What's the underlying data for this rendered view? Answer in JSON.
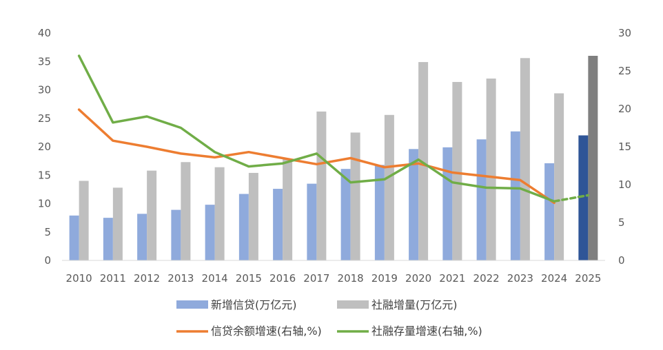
{
  "chart_data": {
    "type": "bar",
    "categories": [
      "2010",
      "2011",
      "2012",
      "2013",
      "2014",
      "2015",
      "2016",
      "2017",
      "2018",
      "2019",
      "2020",
      "2021",
      "2022",
      "2023",
      "2024",
      "2025"
    ],
    "ylim_left": [
      0,
      40
    ],
    "ylim_right": [
      0,
      30
    ],
    "left_ticks": [
      "0",
      "5",
      "10",
      "15",
      "20",
      "25",
      "30",
      "35",
      "40"
    ],
    "right_ticks": [
      "0",
      "5",
      "10",
      "15",
      "20",
      "25",
      "30"
    ],
    "grid": false,
    "legend_position": "bottom",
    "series": [
      {
        "name": "新增信贷(万亿元)",
        "kind": "bar",
        "axis": "left",
        "color": "#8FAADC",
        "highlight_color": "#2F5597",
        "values": [
          7.9,
          7.5,
          8.2,
          8.9,
          9.8,
          11.7,
          12.6,
          13.5,
          16.1,
          16.8,
          19.6,
          19.9,
          21.3,
          22.7,
          17.1,
          22.0
        ]
      },
      {
        "name": "社融增量(万亿元)",
        "kind": "bar",
        "axis": "left",
        "color": "#BFBFBF",
        "highlight_color": "#7F7F7F",
        "values": [
          14.0,
          12.8,
          15.8,
          17.3,
          16.4,
          15.4,
          17.8,
          26.2,
          22.5,
          25.6,
          34.9,
          31.4,
          32.0,
          35.6,
          29.4,
          36.0
        ]
      },
      {
        "name": "信贷余额增速(右轴,%)",
        "kind": "line",
        "axis": "right",
        "color": "#ED7D31",
        "values": [
          19.9,
          15.8,
          15.0,
          14.1,
          13.6,
          14.3,
          13.5,
          12.7,
          13.5,
          12.3,
          12.8,
          11.6,
          11.1,
          10.6,
          7.6,
          null
        ]
      },
      {
        "name": "社融存量增速(右轴,%)",
        "kind": "line",
        "axis": "right",
        "color": "#70AD47",
        "values": [
          27.0,
          18.2,
          19.0,
          17.5,
          14.3,
          12.4,
          12.8,
          14.1,
          10.3,
          10.7,
          13.3,
          10.3,
          9.6,
          9.5,
          7.8,
          8.6
        ],
        "dashed_last_segment": true
      }
    ]
  }
}
